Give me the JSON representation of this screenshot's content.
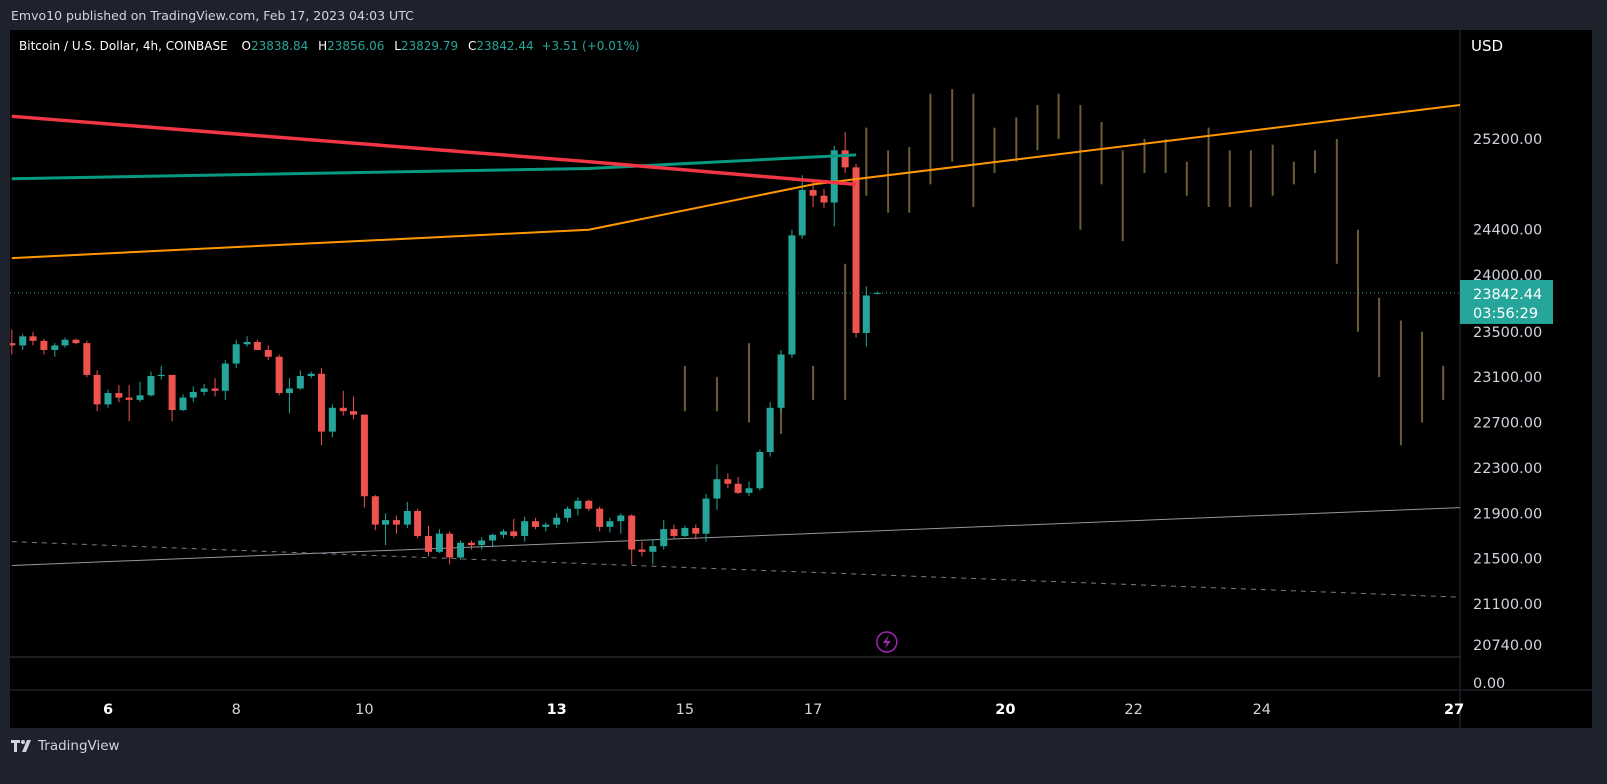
{
  "publisher_line": "Emvo10 published on TradingView.com, Feb 17, 2023 04:03 UTC",
  "legend": {
    "symbol": "Bitcoin / U.S. Dollar, 4h, COINBASE",
    "o_label": "O",
    "o_value": "23838.84",
    "h_label": "H",
    "h_value": "23856.06",
    "l_label": "L",
    "l_value": "23829.79",
    "c_label": "C",
    "c_value": "23842.44",
    "change": "+3.51 (+0.01%)"
  },
  "currency": "USD",
  "price_tag": {
    "price": "23842.44",
    "countdown": "03:56:29"
  },
  "footer_brand": "TradingView",
  "colors": {
    "up": "#26a69a",
    "down": "#ef5350",
    "ema_red": "#f23645",
    "ema_teal": "#089981",
    "ema_orange": "#ff9800",
    "ghost": "#6b5d36",
    "event_icon": "#9c27b0"
  },
  "chart_data": {
    "type": "candlestick",
    "timeframe": "4h",
    "ylim": [
      20740,
      25700
    ],
    "y_tick_labels": [
      "25200.00",
      "24400.00",
      "24000.00",
      "23500.00",
      "23100.00",
      "22700.00",
      "22300.00",
      "21900.00",
      "21500.00",
      "21100.00",
      "20740.00"
    ],
    "y_ticks": [
      25200,
      24400,
      24000,
      23500,
      23100,
      22700,
      22300,
      21900,
      21500,
      21100,
      20740
    ],
    "volume_axis_label": "0.00",
    "x_tick_labels": [
      {
        "label": "6",
        "day": 6,
        "bold": true
      },
      {
        "label": "8",
        "day": 8,
        "bold": false
      },
      {
        "label": "10",
        "day": 10,
        "bold": false
      },
      {
        "label": "13",
        "day": 13,
        "bold": true
      },
      {
        "label": "15",
        "day": 15,
        "bold": false
      },
      {
        "label": "17",
        "day": 17,
        "bold": false
      },
      {
        "label": "20",
        "day": 20,
        "bold": true
      },
      {
        "label": "22",
        "day": 22,
        "bold": false
      },
      {
        "label": "24",
        "day": 24,
        "bold": false
      },
      {
        "label": "27",
        "day": 27,
        "bold": true
      }
    ],
    "last_price": 23842.44,
    "candles": [
      [
        4.5,
        23400,
        23520,
        23300,
        23380
      ],
      [
        4.67,
        23380,
        23480,
        23340,
        23460
      ],
      [
        4.83,
        23460,
        23500,
        23380,
        23420
      ],
      [
        5,
        23420,
        23440,
        23300,
        23340
      ],
      [
        5.17,
        23340,
        23400,
        23280,
        23380
      ],
      [
        5.33,
        23380,
        23450,
        23360,
        23430
      ],
      [
        5.5,
        23430,
        23440,
        23390,
        23400
      ],
      [
        5.67,
        23400,
        23420,
        23100,
        23120
      ],
      [
        5.83,
        23120,
        23160,
        22800,
        22860
      ],
      [
        6,
        22860,
        22990,
        22830,
        22960
      ],
      [
        6.17,
        22960,
        23030,
        22880,
        22920
      ],
      [
        6.33,
        22920,
        23030,
        22710,
        22900
      ],
      [
        6.5,
        22900,
        23060,
        22880,
        22940
      ],
      [
        6.67,
        22940,
        23150,
        22930,
        23110
      ],
      [
        6.83,
        23110,
        23200,
        23080,
        23120
      ],
      [
        7,
        23120,
        23120,
        22710,
        22810
      ],
      [
        7.17,
        22810,
        22950,
        22800,
        22920
      ],
      [
        7.33,
        22920,
        23020,
        22880,
        22970
      ],
      [
        7.5,
        22970,
        23040,
        22940,
        23000
      ],
      [
        7.67,
        23000,
        23090,
        22930,
        22980
      ],
      [
        7.83,
        22980,
        23250,
        22900,
        23220
      ],
      [
        8,
        23220,
        23430,
        23180,
        23390
      ],
      [
        8.17,
        23390,
        23460,
        23370,
        23410
      ],
      [
        8.33,
        23410,
        23430,
        23340,
        23340
      ],
      [
        8.5,
        23340,
        23380,
        23250,
        23280
      ],
      [
        8.67,
        23280,
        23300,
        22940,
        22960
      ],
      [
        8.83,
        22960,
        23090,
        22780,
        23000
      ],
      [
        9,
        23000,
        23160,
        22990,
        23110
      ],
      [
        9.17,
        23110,
        23150,
        23090,
        23130
      ],
      [
        9.33,
        23130,
        23180,
        22500,
        22620
      ],
      [
        9.5,
        22620,
        22860,
        22570,
        22830
      ],
      [
        9.67,
        22830,
        22980,
        22760,
        22800
      ],
      [
        9.83,
        22800,
        22930,
        22730,
        22770
      ],
      [
        10,
        22770,
        22770,
        21950,
        22050
      ],
      [
        10.17,
        22050,
        22060,
        21750,
        21800
      ],
      [
        10.33,
        21800,
        21900,
        21620,
        21840
      ],
      [
        10.5,
        21840,
        21880,
        21720,
        21800
      ],
      [
        10.67,
        21800,
        22000,
        21770,
        21920
      ],
      [
        10.83,
        21920,
        21940,
        21680,
        21700
      ],
      [
        11,
        21700,
        21790,
        21520,
        21560
      ],
      [
        11.17,
        21560,
        21760,
        21550,
        21720
      ],
      [
        11.33,
        21720,
        21740,
        21450,
        21510
      ],
      [
        11.5,
        21510,
        21660,
        21490,
        21640
      ],
      [
        11.67,
        21640,
        21660,
        21580,
        21620
      ],
      [
        11.83,
        21620,
        21690,
        21580,
        21660
      ],
      [
        12,
        21660,
        21720,
        21600,
        21710
      ],
      [
        12.17,
        21710,
        21760,
        21680,
        21740
      ],
      [
        12.33,
        21740,
        21850,
        21680,
        21700
      ],
      [
        12.5,
        21700,
        21870,
        21650,
        21830
      ],
      [
        12.67,
        21830,
        21860,
        21760,
        21780
      ],
      [
        12.83,
        21780,
        21820,
        21740,
        21800
      ],
      [
        13,
        21800,
        21900,
        21770,
        21860
      ],
      [
        13.17,
        21860,
        21960,
        21820,
        21940
      ],
      [
        13.33,
        21940,
        22040,
        21880,
        22010
      ],
      [
        13.5,
        22010,
        22020,
        21920,
        21940
      ],
      [
        13.67,
        21940,
        21960,
        21740,
        21780
      ],
      [
        13.83,
        21780,
        21860,
        21730,
        21830
      ],
      [
        14,
        21830,
        21900,
        21720,
        21880
      ],
      [
        14.17,
        21880,
        21890,
        21450,
        21580
      ],
      [
        14.33,
        21580,
        21650,
        21520,
        21560
      ],
      [
        14.5,
        21560,
        21670,
        21450,
        21610
      ],
      [
        14.67,
        21610,
        21840,
        21580,
        21760
      ],
      [
        14.83,
        21760,
        21800,
        21680,
        21700
      ],
      [
        15,
        21700,
        21790,
        21690,
        21770
      ],
      [
        15.17,
        21770,
        21800,
        21670,
        21720
      ],
      [
        15.33,
        21720,
        22070,
        21650,
        22030
      ],
      [
        15.5,
        22030,
        22330,
        21930,
        22200
      ],
      [
        15.67,
        22200,
        22250,
        22120,
        22160
      ],
      [
        15.83,
        22160,
        22220,
        22070,
        22080
      ],
      [
        16,
        22080,
        22180,
        22050,
        22120
      ],
      [
        16.17,
        22120,
        22460,
        22100,
        22440
      ],
      [
        16.33,
        22440,
        22880,
        22400,
        22830
      ],
      [
        16.5,
        22830,
        23340,
        22790,
        23300
      ],
      [
        16.67,
        23300,
        24400,
        23270,
        24350
      ],
      [
        16.83,
        24350,
        24880,
        24320,
        24750
      ],
      [
        17,
        24750,
        24830,
        24600,
        24700
      ],
      [
        17.17,
        24700,
        24760,
        24590,
        24640
      ],
      [
        17.33,
        24640,
        25140,
        24430,
        25100
      ],
      [
        17.5,
        25100,
        25260,
        24900,
        24950
      ],
      [
        17.67,
        24950,
        24980,
        23450,
        23490
      ],
      [
        17.83,
        23490,
        23900,
        23370,
        23820
      ],
      [
        18,
        23838.84,
        23856.06,
        23829.79,
        23842.44
      ]
    ],
    "ghost_projection_bars": [
      [
        15.0,
        22800,
        23200
      ],
      [
        15.5,
        22800,
        23100
      ],
      [
        16.0,
        22700,
        23400
      ],
      [
        16.5,
        22600,
        23000
      ],
      [
        17.0,
        22900,
        23200
      ],
      [
        17.5,
        22900,
        24100
      ],
      [
        17.83,
        24700,
        25300
      ],
      [
        18.17,
        24550,
        25100
      ],
      [
        18.5,
        24550,
        25130
      ],
      [
        18.83,
        24800,
        25600
      ],
      [
        19.17,
        25000,
        25640
      ],
      [
        19.5,
        24600,
        25600
      ],
      [
        19.83,
        24900,
        25300
      ],
      [
        20.17,
        25000,
        25390
      ],
      [
        20.5,
        25100,
        25500
      ],
      [
        20.83,
        25200,
        25600
      ],
      [
        21.17,
        24400,
        25500
      ],
      [
        21.5,
        24800,
        25350
      ],
      [
        21.83,
        24300,
        25100
      ],
      [
        22.17,
        24900,
        25200
      ],
      [
        22.5,
        24900,
        25200
      ],
      [
        22.83,
        24700,
        25000
      ],
      [
        23.17,
        24600,
        25300
      ],
      [
        23.5,
        24600,
        25100
      ],
      [
        23.83,
        24600,
        25100
      ],
      [
        24.17,
        24700,
        25150
      ],
      [
        24.5,
        24800,
        25000
      ],
      [
        24.83,
        24900,
        25100
      ],
      [
        25.17,
        24100,
        25200
      ],
      [
        25.5,
        23500,
        24400
      ],
      [
        25.83,
        23100,
        23800
      ],
      [
        26.17,
        22500,
        23600
      ],
      [
        26.5,
        22700,
        23500
      ],
      [
        26.83,
        22900,
        23200
      ],
      [
        27.17,
        22900,
        24500
      ]
    ],
    "ema_red": [
      [
        4.5,
        25400
      ],
      [
        13.5,
        25000
      ],
      [
        17.67,
        24800
      ]
    ],
    "ema_teal": [
      [
        4.5,
        24850
      ],
      [
        13.5,
        24940
      ],
      [
        17.67,
        25060
      ]
    ],
    "ema_orange": [
      [
        4.5,
        24150
      ],
      [
        13.5,
        24400
      ],
      [
        17.0,
        24800
      ],
      [
        27.1,
        25500
      ]
    ],
    "trend_solid": [
      [
        4.5,
        21440
      ],
      [
        27.1,
        21950
      ]
    ],
    "trend_dashed": [
      [
        4.5,
        21650
      ],
      [
        27.1,
        21160
      ]
    ]
  }
}
